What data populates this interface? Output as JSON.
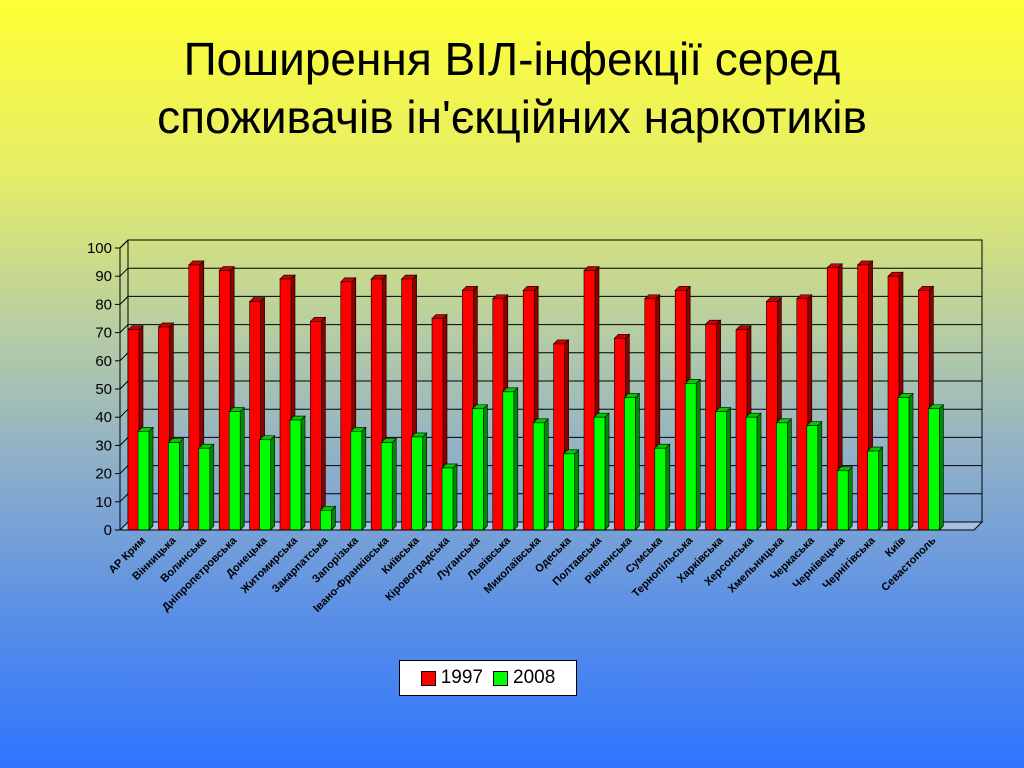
{
  "title": {
    "line1": "Поширення ВІЛ-інфекції серед",
    "line2": "споживачів ін'єкційних наркотиків"
  },
  "chart_data": {
    "type": "bar",
    "title": "Поширення ВІЛ-інфекції серед споживачів ін'єкційних наркотиків",
    "categories": [
      "АР Крим",
      "Вінницька",
      "Волинська",
      "Дніпропетровська",
      "Донецька",
      "Житомирська",
      "Закарпатська",
      "Запорізька",
      "Івано-Франківська",
      "Київська",
      "Кіровоградська",
      "Луганська",
      "Львівська",
      "Миколаївська",
      "Одеська",
      "Полтавська",
      "Рівненська",
      "Сумська",
      "Тернопільська",
      "Харківська",
      "Херсонська",
      "Хмельницька",
      "Черкаська",
      "Чернівецька",
      "Чернігівська",
      "Київ",
      "Севастополь"
    ],
    "series": [
      {
        "name": "1997",
        "color": "#ff0000",
        "values": [
          71,
          72,
          94,
          92,
          81,
          89,
          74,
          88,
          89,
          89,
          75,
          85,
          82,
          85,
          66,
          92,
          68,
          82,
          85,
          73,
          71,
          81,
          82,
          93,
          94,
          90,
          85
        ]
      },
      {
        "name": "2008",
        "color": "#00ff00",
        "values": [
          35,
          31,
          29,
          42,
          32,
          39,
          7,
          35,
          31,
          33,
          22,
          43,
          49,
          38,
          27,
          40,
          47,
          29,
          52,
          42,
          40,
          38,
          37,
          21,
          28,
          47,
          43
        ]
      }
    ],
    "ylim": [
      0,
      100
    ],
    "yticks": [
      "0",
      "10",
      "20",
      "30",
      "40",
      "50",
      "60",
      "70",
      "80",
      "90",
      "100"
    ],
    "grid": true,
    "legend_position": "bottom"
  },
  "legend": {
    "items": [
      {
        "label": "1997",
        "color": "#ff0000"
      },
      {
        "label": "2008",
        "color": "#00ff00"
      }
    ]
  }
}
